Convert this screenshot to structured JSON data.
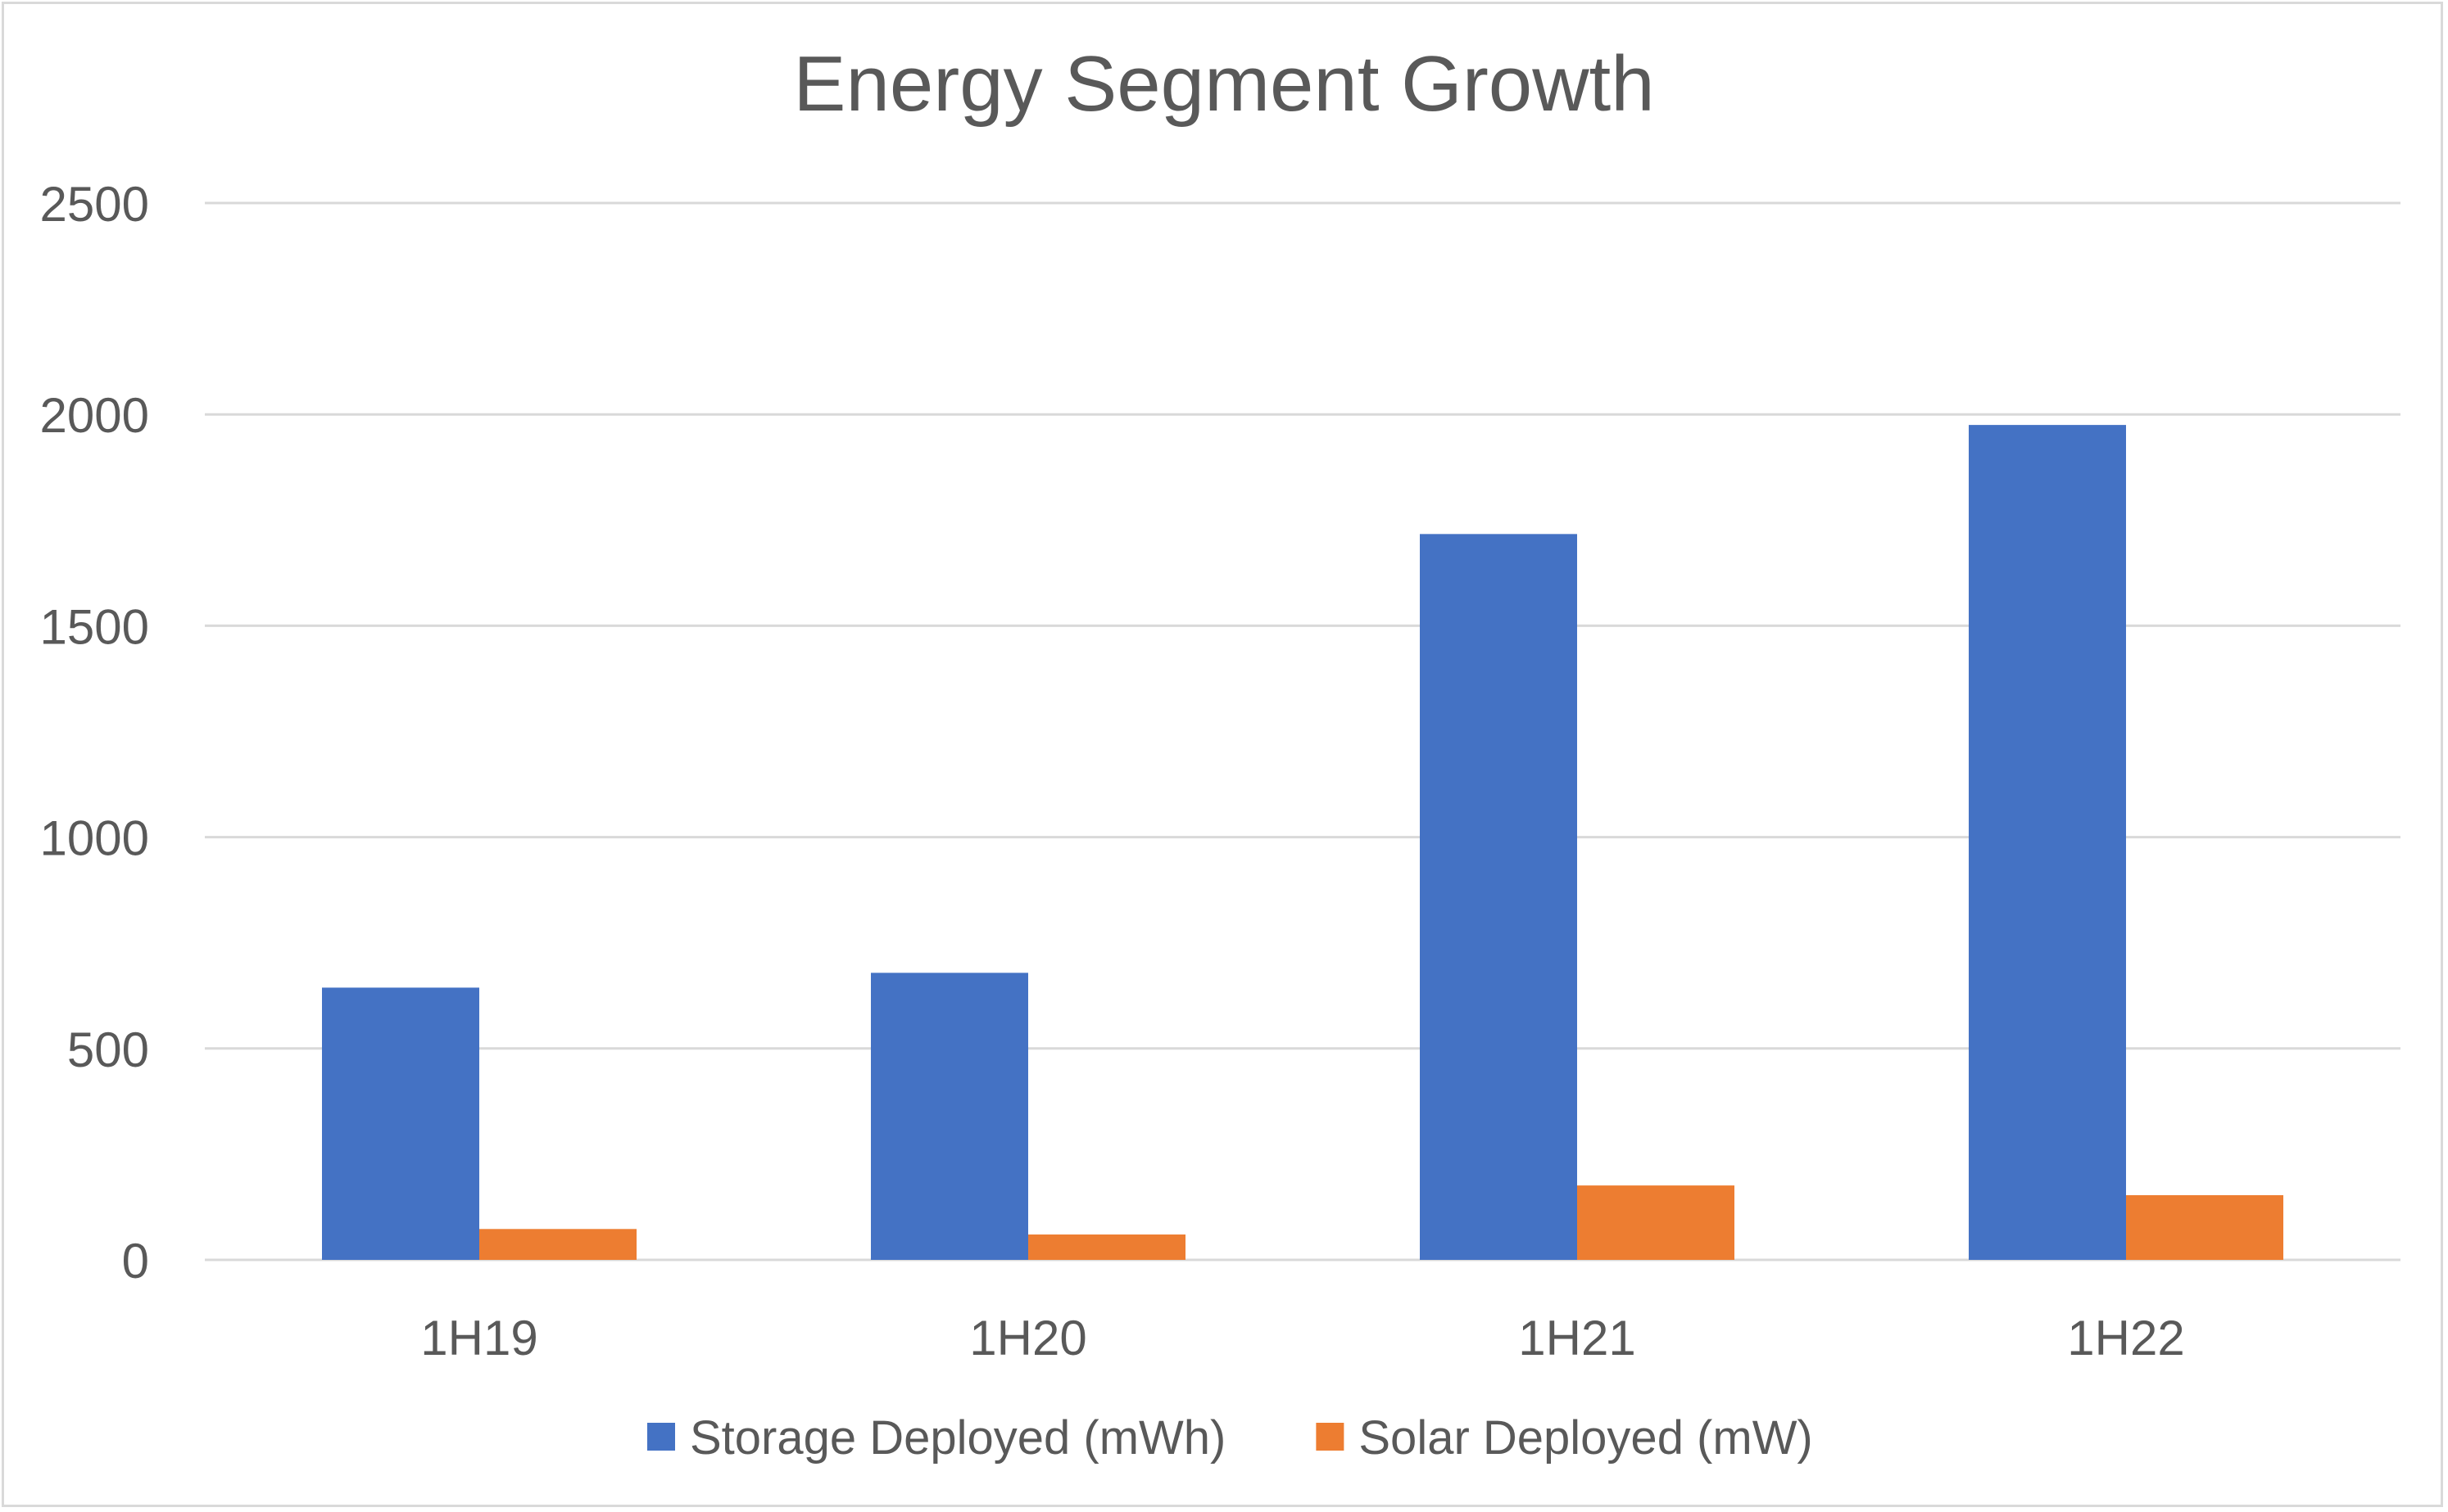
{
  "chart_data": {
    "type": "bar",
    "title": "Energy Segment Growth",
    "categories": [
      "1H19",
      "1H20",
      "1H21",
      "1H22"
    ],
    "series": [
      {
        "name": "Storage Deployed (mWh)",
        "color": "#4472C4",
        "values": [
          644,
          679,
          1717,
          1975
        ]
      },
      {
        "name": "Solar Deployed (mW)",
        "color": "#ED7D31",
        "values": [
          73,
          60,
          176,
          153
        ]
      }
    ],
    "ylim": [
      0,
      2500
    ],
    "yticks": [
      0,
      500,
      1000,
      1500,
      2000,
      2500
    ],
    "grid": true,
    "legend": "bottom"
  }
}
